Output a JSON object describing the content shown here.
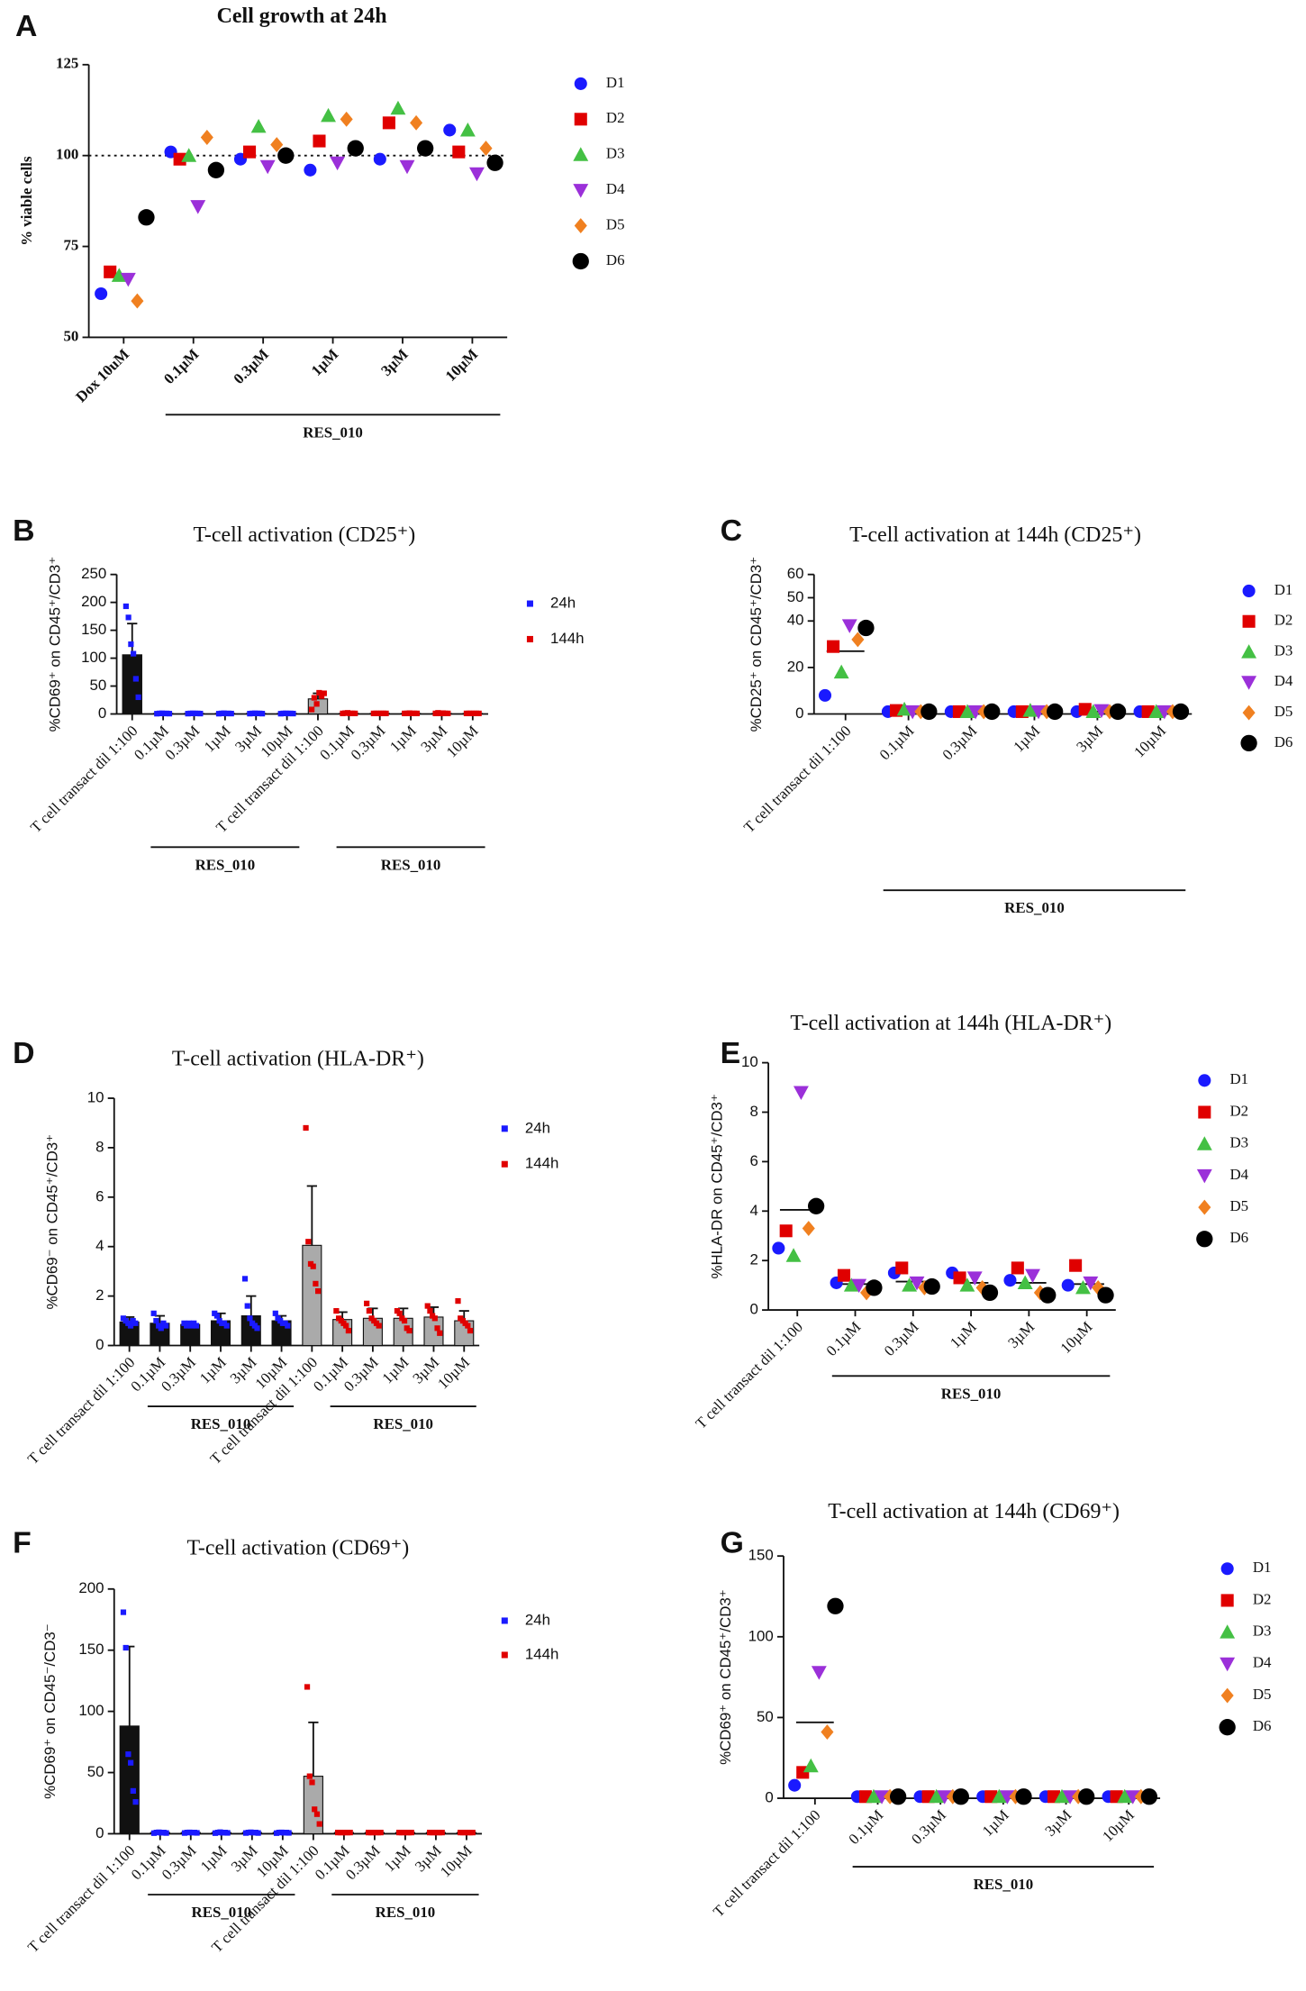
{
  "chart_data": [
    {
      "type": "scatter",
      "panel": "A",
      "title": "Cell growth at 24h",
      "ylabel": "% viable cells",
      "categories": [
        "Dox 10uM",
        "0.1µM",
        "0.3µM",
        "1µM",
        "3µM",
        "10µM"
      ],
      "group_label": "RES_010",
      "ylim": [
        50,
        125
      ],
      "yticks": [
        50,
        75,
        100,
        125
      ],
      "reference_line": 100,
      "series": [
        {
          "name": "D1",
          "color": "#1a1aff",
          "marker": "circle",
          "values": [
            62,
            101,
            99,
            96,
            99,
            107
          ]
        },
        {
          "name": "D2",
          "color": "#e00000",
          "marker": "square",
          "values": [
            68,
            99,
            101,
            104,
            109,
            101
          ]
        },
        {
          "name": "D3",
          "color": "#44c044",
          "marker": "triangle",
          "values": [
            67,
            100,
            108,
            111,
            113,
            107
          ]
        },
        {
          "name": "D4",
          "color": "#9b30d9",
          "marker": "triangle-down",
          "values": [
            66,
            86,
            97,
            98,
            97,
            95
          ]
        },
        {
          "name": "D5",
          "color": "#f08020",
          "marker": "diamond",
          "values": [
            60,
            105,
            103,
            110,
            109,
            102
          ]
        },
        {
          "name": "D6",
          "color": "#000000",
          "marker": "big-circle",
          "values": [
            83,
            96,
            100,
            102,
            102,
            98
          ]
        }
      ]
    },
    {
      "type": "bar",
      "panel": "B",
      "title": "T-cell activation (CD25⁺)",
      "ylabel": "%CD69⁺ on CD45⁺/CD3⁺",
      "categories": [
        "T cell transact dil 1:100",
        "0.1µM",
        "0.3µM",
        "1µM",
        "3µM",
        "10µM"
      ],
      "group_label": "RES_010",
      "ylim": [
        0,
        250
      ],
      "yticks": [
        0,
        50,
        100,
        150,
        200,
        250
      ],
      "series": [
        {
          "name": "24h",
          "color": "#1a1aff",
          "bar_color": "#111111",
          "values": [
            106,
            1,
            1,
            1,
            1,
            1
          ],
          "errors": [
            56,
            0.3,
            0.3,
            0.3,
            0.3,
            0.3
          ],
          "points": [
            [
              193,
              173,
              125,
              108,
              63,
              30
            ],
            [
              0.5,
              1,
              1.2,
              0.8,
              1,
              0.6
            ],
            [
              0.6,
              1,
              1.1,
              0.9,
              1,
              0.7
            ],
            [
              0.5,
              1,
              1.3,
              0.8,
              1,
              0.7
            ],
            [
              0.6,
              1,
              1.2,
              0.9,
              1,
              0.6
            ],
            [
              0.5,
              1,
              1.1,
              0.8,
              1,
              0.7
            ]
          ]
        },
        {
          "name": "144h",
          "color": "#e00000",
          "bar_color": "#aaaaaa",
          "values": [
            27,
            1,
            1,
            1,
            1,
            1
          ],
          "errors": [
            10,
            0.3,
            0.3,
            0.3,
            0.3,
            0.3
          ],
          "points": [
            [
              8,
              29,
              18,
              38,
              32,
              37
            ],
            [
              1,
              1.5,
              2,
              1,
              1,
              1
            ],
            [
              1,
              1,
              1,
              1,
              1,
              1
            ],
            [
              1,
              1,
              1.5,
              1,
              1,
              1
            ],
            [
              1,
              2,
              1,
              1.5,
              1,
              1
            ],
            [
              1,
              1,
              1,
              1,
              1,
              1
            ]
          ]
        }
      ]
    },
    {
      "type": "scatter",
      "panel": "C",
      "title": "T-cell activation at 144h (CD25⁺)",
      "ylabel": "%CD25⁺ on CD45⁺/CD3⁺",
      "categories": [
        "T cell transact dil 1:100",
        "0.1µM",
        "0.3µM",
        "1µM",
        "3µM",
        "10µM"
      ],
      "group_label": "RES_010",
      "ylim": [
        0,
        60
      ],
      "yticks": [
        0,
        20,
        40,
        50,
        60
      ],
      "means": [
        27,
        1,
        1,
        1,
        1,
        1
      ],
      "series": [
        {
          "name": "D1",
          "color": "#1a1aff",
          "marker": "circle",
          "values": [
            8,
            1,
            1,
            1,
            1,
            1
          ]
        },
        {
          "name": "D2",
          "color": "#e00000",
          "marker": "square",
          "values": [
            29,
            1.5,
            1,
            1,
            2,
            1
          ]
        },
        {
          "name": "D3",
          "color": "#44c044",
          "marker": "triangle",
          "values": [
            18,
            2,
            1,
            1.5,
            1,
            1
          ]
        },
        {
          "name": "D4",
          "color": "#9b30d9",
          "marker": "triangle-down",
          "values": [
            38,
            1,
            1,
            1,
            1.5,
            1
          ]
        },
        {
          "name": "D5",
          "color": "#f08020",
          "marker": "diamond",
          "values": [
            32,
            1,
            1,
            1,
            1,
            1
          ]
        },
        {
          "name": "D6",
          "color": "#000000",
          "marker": "big-circle",
          "values": [
            37,
            1,
            1,
            1,
            1,
            1
          ]
        }
      ]
    },
    {
      "type": "bar",
      "panel": "D",
      "title": "T-cell activation (HLA-DR⁺)",
      "ylabel": "%CD69⁻ on CD45⁺/CD3⁺",
      "categories": [
        "T cell transact dil 1:100",
        "0.1µM",
        "0.3µM",
        "1µM",
        "3µM",
        "10µM"
      ],
      "group_label": "RES_010",
      "ylim": [
        0,
        10
      ],
      "yticks": [
        0,
        2,
        4,
        6,
        8,
        10
      ],
      "series": [
        {
          "name": "24h",
          "color": "#1a1aff",
          "bar_color": "#111111",
          "values": [
            0.95,
            0.9,
            0.85,
            1.0,
            1.2,
            1.0
          ],
          "errors": [
            0.2,
            0.3,
            0.1,
            0.3,
            0.8,
            0.2
          ],
          "points": [
            [
              1.1,
              1.0,
              0.9,
              0.8,
              1.0,
              0.9
            ],
            [
              1.3,
              1.0,
              0.8,
              0.7,
              0.9,
              0.8
            ],
            [
              0.9,
              0.8,
              0.9,
              0.8,
              0.9,
              0.8
            ],
            [
              1.3,
              1.2,
              1.0,
              0.9,
              0.9,
              0.8
            ],
            [
              2.7,
              1.6,
              1.1,
              0.9,
              0.8,
              0.7
            ],
            [
              1.3,
              1.1,
              1.0,
              0.9,
              0.9,
              0.8
            ]
          ]
        },
        {
          "name": "144h",
          "color": "#e00000",
          "bar_color": "#aaaaaa",
          "values": [
            4.05,
            1.05,
            1.1,
            1.1,
            1.15,
            1.0
          ],
          "errors": [
            2.4,
            0.3,
            0.4,
            0.4,
            0.4,
            0.4
          ],
          "points": [
            [
              8.8,
              4.2,
              3.3,
              3.2,
              2.5,
              2.2
            ],
            [
              1.4,
              1.1,
              1.0,
              0.9,
              0.8,
              0.6
            ],
            [
              1.7,
              1.4,
              1.1,
              1.0,
              0.9,
              0.8
            ],
            [
              1.4,
              1.3,
              1.1,
              1.0,
              0.7,
              0.6
            ],
            [
              1.6,
              1.4,
              1.2,
              1.1,
              0.7,
              0.5
            ],
            [
              1.8,
              1.1,
              1.0,
              0.9,
              0.8,
              0.6
            ]
          ]
        }
      ]
    },
    {
      "type": "scatter",
      "panel": "E",
      "title": "T-cell activation at 144h (HLA-DR⁺)",
      "ylabel": "%HLA-DR on CD45⁺/CD3⁺",
      "categories": [
        "T cell transact dil 1:100",
        "0.1µM",
        "0.3µM",
        "1µM",
        "3µM",
        "10µM"
      ],
      "group_label": "RES_010",
      "ylim": [
        0,
        10
      ],
      "yticks": [
        0,
        2,
        4,
        6,
        8,
        10
      ],
      "means": [
        4.05,
        1.05,
        1.15,
        1.1,
        1.1,
        1.05
      ],
      "series": [
        {
          "name": "D1",
          "color": "#1a1aff",
          "marker": "circle",
          "values": [
            2.5,
            1.1,
            1.5,
            1.5,
            1.2,
            1.0
          ]
        },
        {
          "name": "D2",
          "color": "#e00000",
          "marker": "square",
          "values": [
            3.2,
            1.4,
            1.7,
            1.3,
            1.7,
            1.8
          ]
        },
        {
          "name": "D3",
          "color": "#44c044",
          "marker": "triangle",
          "values": [
            2.2,
            1.0,
            1.0,
            1.0,
            1.1,
            0.9
          ]
        },
        {
          "name": "D4",
          "color": "#9b30d9",
          "marker": "triangle-down",
          "values": [
            8.8,
            1.0,
            1.1,
            1.3,
            1.4,
            1.1
          ]
        },
        {
          "name": "D5",
          "color": "#f08020",
          "marker": "diamond",
          "values": [
            3.3,
            0.7,
            0.9,
            0.9,
            0.7,
            0.9
          ]
        },
        {
          "name": "D6",
          "color": "#000000",
          "marker": "big-circle",
          "values": [
            4.2,
            0.9,
            0.95,
            0.7,
            0.6,
            0.6
          ]
        }
      ]
    },
    {
      "type": "bar",
      "panel": "F",
      "title": "T-cell activation (CD69⁺)",
      "ylabel": "%CD69⁺ on CD45⁻/CD3⁻",
      "categories": [
        "T cell transact dil 1:100",
        "0.1µM",
        "0.3µM",
        "1µM",
        "3µM",
        "10µM"
      ],
      "group_label": "RES_010",
      "ylim": [
        0,
        200
      ],
      "yticks": [
        0,
        50,
        100,
        150,
        200
      ],
      "series": [
        {
          "name": "24h",
          "color": "#1a1aff",
          "bar_color": "#111111",
          "values": [
            88,
            1,
            1,
            1,
            1,
            1
          ],
          "errors": [
            65,
            0.3,
            0.3,
            0.3,
            0.3,
            0.3
          ],
          "points": [
            [
              181,
              152,
              65,
              58,
              35,
              26
            ],
            [
              0.5,
              1,
              1.2,
              0.8,
              1,
              0.6
            ],
            [
              0.6,
              1,
              1.1,
              0.9,
              1,
              0.7
            ],
            [
              0.5,
              1,
              1.3,
              0.8,
              1,
              0.7
            ],
            [
              0.6,
              1,
              1.2,
              0.9,
              1,
              0.6
            ],
            [
              0.5,
              1,
              1.1,
              0.8,
              1,
              0.7
            ]
          ]
        },
        {
          "name": "144h",
          "color": "#e00000",
          "bar_color": "#aaaaaa",
          "values": [
            47,
            1,
            1,
            1,
            1,
            1
          ],
          "errors": [
            44,
            0.3,
            0.3,
            0.3,
            0.3,
            0.3
          ],
          "points": [
            [
              120,
              47,
              42,
              20,
              16,
              8
            ],
            [
              1,
              1,
              1,
              1,
              1,
              1
            ],
            [
              1,
              1,
              1,
              1,
              1,
              1
            ],
            [
              1,
              1,
              1,
              1,
              1,
              1
            ],
            [
              1,
              1,
              1,
              1,
              1,
              1
            ],
            [
              1,
              1,
              1,
              1,
              1,
              1
            ]
          ]
        }
      ]
    },
    {
      "type": "scatter",
      "panel": "G",
      "title": "T-cell activation at 144h (CD69⁺)",
      "ylabel": "%CD69⁺ on CD45⁺/CD3⁺",
      "categories": [
        "T cell transact dil 1:100",
        "0.1µM",
        "0.3µM",
        "1µM",
        "3µM",
        "10µM"
      ],
      "group_label": "RES_010",
      "ylim": [
        0,
        150
      ],
      "yticks": [
        0,
        50,
        100,
        150
      ],
      "means": [
        47,
        1,
        1,
        1,
        1,
        1
      ],
      "series": [
        {
          "name": "D1",
          "color": "#1a1aff",
          "marker": "circle",
          "values": [
            8,
            1,
            1,
            1,
            1,
            1
          ]
        },
        {
          "name": "D2",
          "color": "#e00000",
          "marker": "square",
          "values": [
            16,
            1,
            1,
            1,
            1,
            1
          ]
        },
        {
          "name": "D3",
          "color": "#44c044",
          "marker": "triangle",
          "values": [
            20,
            1,
            1,
            1,
            1,
            1
          ]
        },
        {
          "name": "D4",
          "color": "#9b30d9",
          "marker": "triangle-down",
          "values": [
            78,
            1,
            1,
            1,
            1,
            1
          ]
        },
        {
          "name": "D5",
          "color": "#f08020",
          "marker": "diamond",
          "values": [
            41,
            1,
            1,
            1,
            1,
            1
          ]
        },
        {
          "name": "D6",
          "color": "#000000",
          "marker": "big-circle",
          "values": [
            119,
            1,
            1,
            1,
            1,
            1
          ]
        }
      ]
    }
  ]
}
